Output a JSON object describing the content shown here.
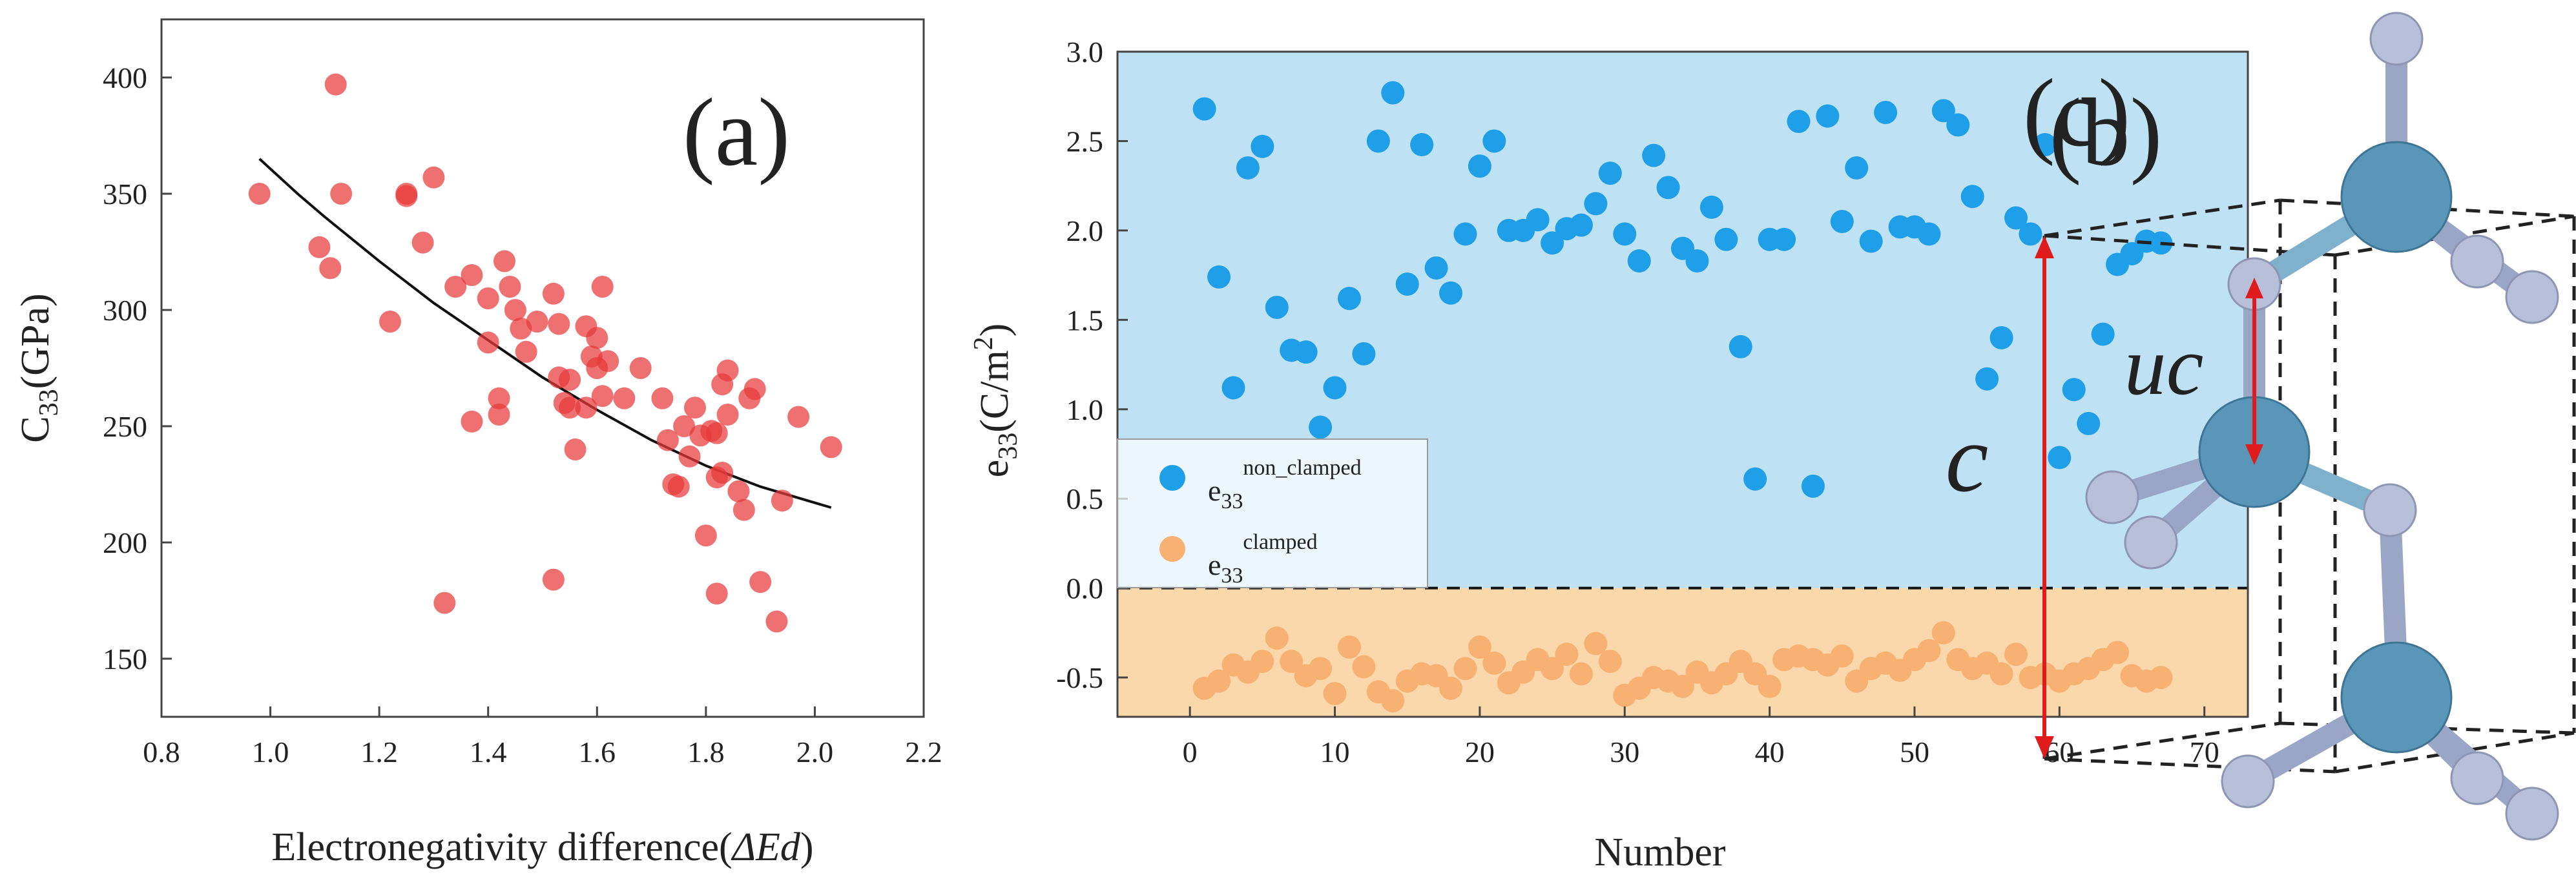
{
  "chart_data": [
    {
      "panel_label": "(a)",
      "type": "scatter",
      "title": "",
      "xlabel_prefix": "Electronegativity difference(",
      "xlabel_symbol": "ΔEd",
      "xlabel_suffix": ")",
      "ylabel_main": "C",
      "ylabel_sub": "33",
      "ylabel_unit": "(GPa)",
      "xlim": [
        0.8,
        2.2
      ],
      "ylim": [
        125,
        425
      ],
      "xticks": [
        0.8,
        1.0,
        1.2,
        1.4,
        1.6,
        1.8,
        2.0,
        2.2
      ],
      "xtick_labels": [
        "0.8",
        "1.0",
        "1.2",
        "1.4",
        "1.6",
        "1.8",
        "2.0",
        "2.2"
      ],
      "yticks": [
        150,
        200,
        250,
        300,
        350,
        400
      ],
      "ytick_labels": [
        "150",
        "200",
        "250",
        "300",
        "350",
        "400"
      ],
      "point_color": "#e8393a",
      "fit_color": "#111111",
      "points": [
        [
          0.98,
          350
        ],
        [
          1.09,
          327
        ],
        [
          1.11,
          318
        ],
        [
          1.12,
          397
        ],
        [
          1.13,
          350
        ],
        [
          1.22,
          295
        ],
        [
          1.25,
          350
        ],
        [
          1.25,
          349
        ],
        [
          1.28,
          329
        ],
        [
          1.3,
          357
        ],
        [
          1.32,
          174
        ],
        [
          1.34,
          310
        ],
        [
          1.37,
          252
        ],
        [
          1.37,
          315
        ],
        [
          1.4,
          305
        ],
        [
          1.4,
          286
        ],
        [
          1.42,
          262
        ],
        [
          1.42,
          255
        ],
        [
          1.43,
          321
        ],
        [
          1.44,
          310
        ],
        [
          1.45,
          300
        ],
        [
          1.46,
          292
        ],
        [
          1.47,
          282
        ],
        [
          1.49,
          295
        ],
        [
          1.52,
          307
        ],
        [
          1.52,
          184
        ],
        [
          1.53,
          294
        ],
        [
          1.53,
          271
        ],
        [
          1.54,
          260
        ],
        [
          1.55,
          270
        ],
        [
          1.55,
          258
        ],
        [
          1.56,
          240
        ],
        [
          1.58,
          293
        ],
        [
          1.58,
          258
        ],
        [
          1.59,
          280
        ],
        [
          1.6,
          288
        ],
        [
          1.6,
          275
        ],
        [
          1.61,
          310
        ],
        [
          1.61,
          263
        ],
        [
          1.62,
          278
        ],
        [
          1.65,
          262
        ],
        [
          1.68,
          275
        ],
        [
          1.72,
          262
        ],
        [
          1.73,
          244
        ],
        [
          1.74,
          225
        ],
        [
          1.75,
          224
        ],
        [
          1.76,
          250
        ],
        [
          1.77,
          237
        ],
        [
          1.78,
          258
        ],
        [
          1.79,
          246
        ],
        [
          1.8,
          203
        ],
        [
          1.81,
          248
        ],
        [
          1.82,
          247
        ],
        [
          1.82,
          228
        ],
        [
          1.83,
          268
        ],
        [
          1.83,
          230
        ],
        [
          1.84,
          274
        ],
        [
          1.84,
          255
        ],
        [
          1.86,
          222
        ],
        [
          1.87,
          214
        ],
        [
          1.88,
          262
        ],
        [
          1.89,
          266
        ],
        [
          1.9,
          183
        ],
        [
          1.93,
          166
        ],
        [
          1.94,
          218
        ],
        [
          1.97,
          254
        ],
        [
          2.03,
          241
        ],
        [
          1.82,
          178
        ]
      ],
      "fit_line": [
        [
          0.98,
          365
        ],
        [
          1.05,
          350
        ],
        [
          1.1,
          340
        ],
        [
          1.2,
          321
        ],
        [
          1.3,
          303
        ],
        [
          1.4,
          287
        ],
        [
          1.5,
          271
        ],
        [
          1.6,
          257
        ],
        [
          1.7,
          244
        ],
        [
          1.8,
          233
        ],
        [
          1.9,
          224
        ],
        [
          2.03,
          215
        ]
      ]
    },
    {
      "panel_label": "(b)",
      "type": "scatter",
      "title": "",
      "xlabel": "Number",
      "ylabel_main": "e",
      "ylabel_sub": "33",
      "ylabel_unit_prefix": "(C/m",
      "ylabel_unit_sup": "2",
      "ylabel_unit_suffix": ")",
      "xlim": [
        -5,
        73
      ],
      "ylim": [
        -0.72,
        3.0
      ],
      "xticks": [
        0,
        10,
        20,
        30,
        40,
        50,
        60,
        70
      ],
      "xtick_labels": [
        "0",
        "10",
        "20",
        "30",
        "40",
        "50",
        "60",
        "70"
      ],
      "yticks": [
        -0.5,
        0.0,
        0.5,
        1.0,
        1.5,
        2.0,
        2.5,
        3.0
      ],
      "ytick_labels": [
        "-0.5",
        "0.0",
        "0.5",
        "1.0",
        "1.5",
        "2.0",
        "2.5",
        "3.0"
      ],
      "positive_region_color": "#bfe1f4",
      "negative_region_color": "#fbd7ac",
      "zero_line": 0.0,
      "legend": [
        {
          "base": "e",
          "sub": "33",
          "sup": "non_clamped",
          "color": "#1f9fe8"
        },
        {
          "base": "e",
          "sub": "33",
          "sup": "clamped",
          "color": "#f7b273"
        }
      ],
      "series": [
        {
          "name": "non_clamped",
          "color": "#1f9fe8",
          "points": [
            [
              1,
              2.68
            ],
            [
              2,
              1.74
            ],
            [
              3,
              1.12
            ],
            [
              4,
              2.35
            ],
            [
              5,
              2.47
            ],
            [
              6,
              1.57
            ],
            [
              7,
              1.33
            ],
            [
              8,
              1.32
            ],
            [
              9,
              0.9
            ],
            [
              10,
              1.12
            ],
            [
              11,
              1.62
            ],
            [
              12,
              1.31
            ],
            [
              13,
              2.5
            ],
            [
              14,
              2.77
            ],
            [
              15,
              1.7
            ],
            [
              16,
              2.48
            ],
            [
              17,
              1.79
            ],
            [
              18,
              1.65
            ],
            [
              19,
              1.98
            ],
            [
              20,
              2.36
            ],
            [
              21,
              2.5
            ],
            [
              22,
              2.0
            ],
            [
              23,
              2.0
            ],
            [
              24,
              2.06
            ],
            [
              25,
              1.93
            ],
            [
              26,
              2.01
            ],
            [
              27,
              2.03
            ],
            [
              28,
              2.15
            ],
            [
              29,
              2.32
            ],
            [
              30,
              1.98
            ],
            [
              31,
              1.83
            ],
            [
              32,
              2.42
            ],
            [
              33,
              2.24
            ],
            [
              34,
              1.9
            ],
            [
              35,
              1.83
            ],
            [
              36,
              2.13
            ],
            [
              37,
              1.95
            ],
            [
              38,
              1.35
            ],
            [
              39,
              0.61
            ],
            [
              40,
              1.95
            ],
            [
              41,
              1.95
            ],
            [
              42,
              2.61
            ],
            [
              43,
              0.57
            ],
            [
              44,
              2.64
            ],
            [
              45,
              2.05
            ],
            [
              46,
              2.35
            ],
            [
              47,
              1.94
            ],
            [
              48,
              2.66
            ],
            [
              49,
              2.02
            ],
            [
              50,
              2.02
            ],
            [
              51,
              1.98
            ],
            [
              52,
              2.67
            ],
            [
              53,
              2.59
            ],
            [
              54,
              2.19
            ],
            [
              55,
              1.17
            ],
            [
              56,
              1.4
            ],
            [
              57,
              2.07
            ],
            [
              58,
              1.98
            ],
            [
              59,
              2.48
            ],
            [
              60,
              0.73
            ],
            [
              61,
              1.11
            ],
            [
              62,
              0.92
            ],
            [
              63,
              1.42
            ],
            [
              64,
              1.81
            ],
            [
              65,
              1.87
            ],
            [
              66,
              1.94
            ],
            [
              67,
              1.93
            ]
          ]
        },
        {
          "name": "clamped",
          "color": "#f7b273",
          "points": [
            [
              1,
              -0.56
            ],
            [
              2,
              -0.52
            ],
            [
              3,
              -0.43
            ],
            [
              4,
              -0.47
            ],
            [
              5,
              -0.41
            ],
            [
              6,
              -0.28
            ],
            [
              7,
              -0.41
            ],
            [
              8,
              -0.49
            ],
            [
              9,
              -0.45
            ],
            [
              10,
              -0.59
            ],
            [
              11,
              -0.33
            ],
            [
              12,
              -0.44
            ],
            [
              13,
              -0.58
            ],
            [
              14,
              -0.63
            ],
            [
              15,
              -0.52
            ],
            [
              16,
              -0.48
            ],
            [
              17,
              -0.49
            ],
            [
              18,
              -0.56
            ],
            [
              19,
              -0.45
            ],
            [
              20,
              -0.33
            ],
            [
              21,
              -0.42
            ],
            [
              22,
              -0.53
            ],
            [
              23,
              -0.47
            ],
            [
              24,
              -0.4
            ],
            [
              25,
              -0.45
            ],
            [
              26,
              -0.37
            ],
            [
              27,
              -0.48
            ],
            [
              28,
              -0.31
            ],
            [
              29,
              -0.41
            ],
            [
              30,
              -0.6
            ],
            [
              31,
              -0.56
            ],
            [
              32,
              -0.5
            ],
            [
              33,
              -0.52
            ],
            [
              34,
              -0.55
            ],
            [
              35,
              -0.47
            ],
            [
              36,
              -0.53
            ],
            [
              37,
              -0.48
            ],
            [
              38,
              -0.41
            ],
            [
              39,
              -0.48
            ],
            [
              40,
              -0.55
            ],
            [
              41,
              -0.4
            ],
            [
              42,
              -0.38
            ],
            [
              43,
              -0.4
            ],
            [
              44,
              -0.43
            ],
            [
              45,
              -0.38
            ],
            [
              46,
              -0.52
            ],
            [
              47,
              -0.45
            ],
            [
              48,
              -0.42
            ],
            [
              49,
              -0.46
            ],
            [
              50,
              -0.4
            ],
            [
              51,
              -0.35
            ],
            [
              52,
              -0.25
            ],
            [
              53,
              -0.4
            ],
            [
              54,
              -0.45
            ],
            [
              55,
              -0.42
            ],
            [
              56,
              -0.48
            ],
            [
              57,
              -0.37
            ],
            [
              58,
              -0.5
            ],
            [
              59,
              -0.48
            ],
            [
              60,
              -0.52
            ],
            [
              61,
              -0.48
            ],
            [
              62,
              -0.45
            ],
            [
              63,
              -0.4
            ],
            [
              64,
              -0.36
            ],
            [
              65,
              -0.49
            ],
            [
              66,
              -0.52
            ],
            [
              67,
              -0.5
            ]
          ]
        }
      ]
    },
    {
      "panel_label": "(c)",
      "type": "diagram",
      "label_c": "c",
      "label_uc": "uc",
      "large_atom_color": "#5a96b8",
      "small_atom_color": "#b8bfd8",
      "arrow_color": "#e01b1b"
    }
  ]
}
